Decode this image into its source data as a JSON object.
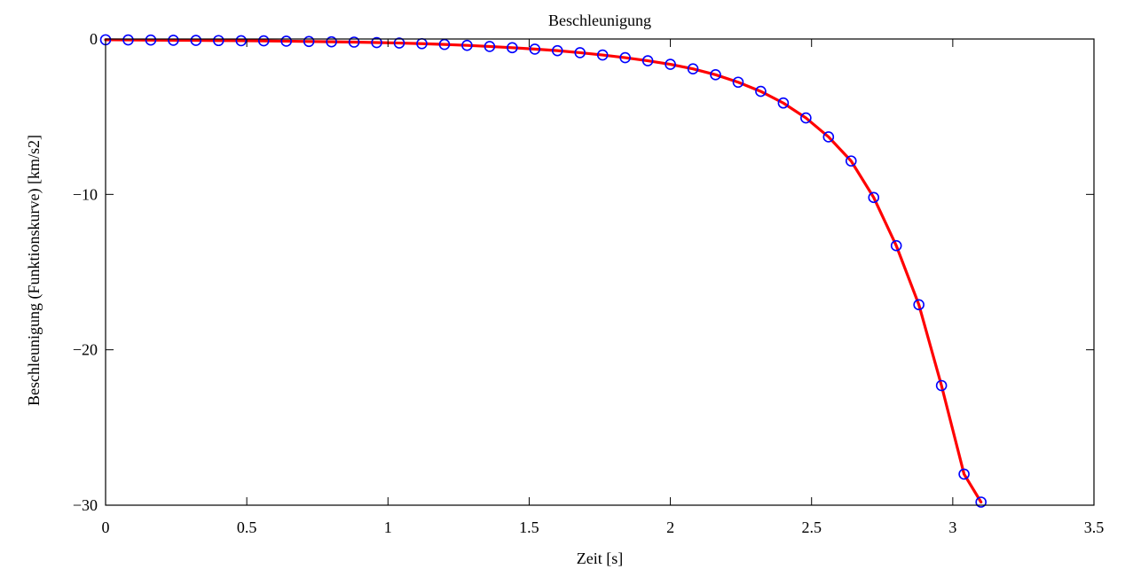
{
  "chart_data": {
    "type": "line",
    "title": "Beschleunigung",
    "xlabel": "Zeit [s]",
    "ylabel": "Beschleunigung (Funktionskurve) [km/s2]",
    "xlim": [
      0,
      3.5
    ],
    "ylim": [
      -30,
      0
    ],
    "xticks": [
      0,
      0.5,
      1,
      1.5,
      2,
      2.5,
      3,
      3.5
    ],
    "xtick_labels": [
      "0",
      "0.5",
      "1",
      "1.5",
      "2",
      "2.5",
      "3",
      "3.5"
    ],
    "yticks": [
      0,
      -10,
      -20,
      -30
    ],
    "ytick_labels": [
      "0",
      "−10",
      "−20",
      "−30"
    ],
    "grid": false,
    "series": [
      {
        "style": "line",
        "color": "#ff0000",
        "x": [
          0,
          0.08,
          0.16,
          0.24,
          0.32,
          0.4,
          0.48,
          0.56,
          0.64,
          0.72,
          0.8,
          0.88,
          0.96,
          1.04,
          1.12,
          1.2,
          1.28,
          1.36,
          1.44,
          1.52,
          1.6,
          1.68,
          1.76,
          1.84,
          1.92,
          2.0,
          2.08,
          2.16,
          2.24,
          2.32,
          2.4,
          2.48,
          2.56,
          2.64,
          2.72,
          2.8,
          2.88,
          2.96,
          3.04,
          3.1
        ],
        "y": [
          -0.05,
          -0.06,
          -0.07,
          -0.08,
          -0.09,
          -0.1,
          -0.11,
          -0.12,
          -0.14,
          -0.16,
          -0.18,
          -0.2,
          -0.23,
          -0.26,
          -0.3,
          -0.35,
          -0.41,
          -0.48,
          -0.56,
          -0.65,
          -0.75,
          -0.88,
          -1.03,
          -1.2,
          -1.4,
          -1.63,
          -1.92,
          -2.3,
          -2.78,
          -3.37,
          -4.12,
          -5.08,
          -6.3,
          -7.85,
          -10.2,
          -13.3,
          -17.1,
          -22.3,
          -28.0,
          -29.8
        ]
      },
      {
        "style": "markers",
        "marker": "circle",
        "color": "#0000ff",
        "x": [
          0,
          0.08,
          0.16,
          0.24,
          0.32,
          0.4,
          0.48,
          0.56,
          0.64,
          0.72,
          0.8,
          0.88,
          0.96,
          1.04,
          1.12,
          1.2,
          1.28,
          1.36,
          1.44,
          1.52,
          1.6,
          1.68,
          1.76,
          1.84,
          1.92,
          2.0,
          2.08,
          2.16,
          2.24,
          2.32,
          2.4,
          2.48,
          2.56,
          2.64,
          2.72,
          2.8,
          2.88,
          2.96,
          3.04,
          3.1
        ],
        "y": [
          -0.05,
          -0.06,
          -0.07,
          -0.08,
          -0.09,
          -0.1,
          -0.11,
          -0.12,
          -0.14,
          -0.16,
          -0.18,
          -0.2,
          -0.23,
          -0.26,
          -0.3,
          -0.35,
          -0.41,
          -0.48,
          -0.56,
          -0.65,
          -0.75,
          -0.88,
          -1.03,
          -1.2,
          -1.4,
          -1.63,
          -1.92,
          -2.3,
          -2.78,
          -3.37,
          -4.12,
          -5.08,
          -6.3,
          -7.85,
          -10.2,
          -13.3,
          -17.1,
          -22.3,
          -28.0,
          -29.8
        ]
      }
    ]
  }
}
